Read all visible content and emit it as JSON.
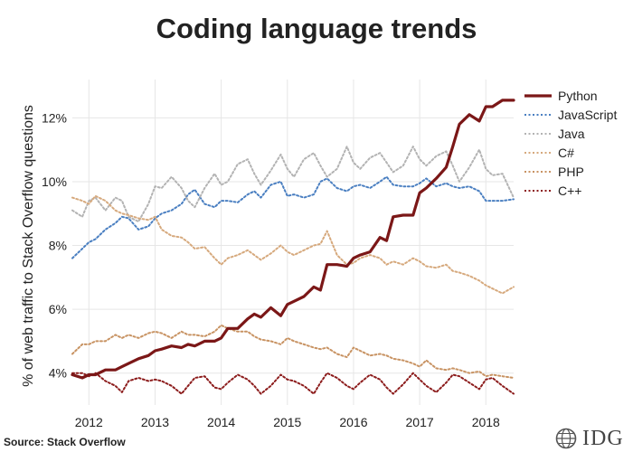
{
  "title": "Coding language trends",
  "source": "Source: Stack Overflow",
  "brand": {
    "text": "IDG",
    "icon": "globe-icon"
  },
  "chart_data": {
    "type": "line",
    "title": "Coding language trends",
    "xlabel": "",
    "ylabel": "% of web traffic to Stack Overflow questions",
    "xlim": [
      2011.75,
      2018.42
    ],
    "ylim": [
      3.0,
      13.2
    ],
    "x_ticks": [
      2012,
      2013,
      2014,
      2015,
      2016,
      2017,
      2018
    ],
    "y_ticks": [
      4,
      6,
      8,
      10,
      12
    ],
    "y_tick_labels": [
      "4%",
      "6%",
      "8%",
      "10%",
      "12%"
    ],
    "grid": true,
    "legend_position": "right",
    "series": [
      {
        "name": "Python",
        "color": "#7b1717",
        "dash": "solid",
        "x": [
          2011.75,
          2011.9,
          2012.0,
          2012.1,
          2012.25,
          2012.4,
          2012.5,
          2012.6,
          2012.75,
          2012.9,
          2013.0,
          2013.1,
          2013.25,
          2013.4,
          2013.5,
          2013.6,
          2013.75,
          2013.9,
          2014.0,
          2014.1,
          2014.25,
          2014.4,
          2014.5,
          2014.6,
          2014.75,
          2014.9,
          2015.0,
          2015.1,
          2015.25,
          2015.4,
          2015.5,
          2015.6,
          2015.75,
          2015.9,
          2016.0,
          2016.1,
          2016.25,
          2016.4,
          2016.5,
          2016.6,
          2016.75,
          2016.9,
          2017.0,
          2017.1,
          2017.25,
          2017.4,
          2017.5,
          2017.6,
          2017.75,
          2017.9,
          2018.0,
          2018.1,
          2018.25,
          2018.42
        ],
        "y": [
          3.95,
          3.85,
          3.95,
          3.95,
          4.1,
          4.1,
          4.2,
          4.3,
          4.45,
          4.55,
          4.7,
          4.75,
          4.85,
          4.8,
          4.9,
          4.85,
          5.0,
          5.0,
          5.1,
          5.4,
          5.4,
          5.7,
          5.85,
          5.75,
          6.05,
          5.8,
          6.15,
          6.25,
          6.4,
          6.7,
          6.6,
          7.4,
          7.4,
          7.35,
          7.6,
          7.7,
          7.8,
          8.25,
          8.15,
          8.9,
          8.95,
          8.95,
          9.65,
          9.8,
          10.1,
          10.45,
          11.1,
          11.8,
          12.1,
          11.9,
          12.35,
          12.35,
          12.55,
          12.55
        ]
      },
      {
        "name": "JavaScript",
        "color": "#4a7fc1",
        "dash": "dotted",
        "x": [
          2011.75,
          2011.9,
          2012.0,
          2012.1,
          2012.25,
          2012.4,
          2012.5,
          2012.6,
          2012.75,
          2012.9,
          2013.0,
          2013.1,
          2013.25,
          2013.4,
          2013.5,
          2013.6,
          2013.75,
          2013.9,
          2014.0,
          2014.1,
          2014.25,
          2014.4,
          2014.5,
          2014.6,
          2014.75,
          2014.9,
          2015.0,
          2015.1,
          2015.25,
          2015.4,
          2015.5,
          2015.6,
          2015.75,
          2015.9,
          2016.0,
          2016.1,
          2016.25,
          2016.4,
          2016.5,
          2016.6,
          2016.75,
          2016.9,
          2017.0,
          2017.1,
          2017.25,
          2017.4,
          2017.5,
          2017.6,
          2017.75,
          2017.9,
          2018.0,
          2018.1,
          2018.25,
          2018.42
        ],
        "y": [
          7.6,
          7.9,
          8.1,
          8.2,
          8.5,
          8.7,
          8.9,
          8.85,
          8.5,
          8.6,
          8.85,
          9.0,
          9.1,
          9.3,
          9.6,
          9.75,
          9.3,
          9.2,
          9.4,
          9.4,
          9.35,
          9.6,
          9.7,
          9.5,
          9.9,
          10.0,
          9.55,
          9.6,
          9.5,
          9.6,
          10.0,
          10.1,
          9.8,
          9.7,
          9.85,
          9.9,
          9.8,
          10.0,
          10.15,
          9.9,
          9.85,
          9.85,
          9.95,
          10.1,
          9.85,
          9.95,
          9.85,
          9.8,
          9.85,
          9.7,
          9.4,
          9.4,
          9.4,
          9.45
        ]
      },
      {
        "name": "Java",
        "color": "#b3b3b3",
        "dash": "dotted",
        "x": [
          2011.75,
          2011.9,
          2012.0,
          2012.1,
          2012.25,
          2012.4,
          2012.5,
          2012.6,
          2012.75,
          2012.9,
          2013.0,
          2013.1,
          2013.25,
          2013.4,
          2013.5,
          2013.6,
          2013.75,
          2013.9,
          2014.0,
          2014.1,
          2014.25,
          2014.4,
          2014.5,
          2014.6,
          2014.75,
          2014.9,
          2015.0,
          2015.1,
          2015.25,
          2015.4,
          2015.5,
          2015.6,
          2015.75,
          2015.9,
          2016.0,
          2016.1,
          2016.25,
          2016.4,
          2016.5,
          2016.6,
          2016.75,
          2016.9,
          2017.0,
          2017.1,
          2017.25,
          2017.4,
          2017.5,
          2017.6,
          2017.75,
          2017.9,
          2018.0,
          2018.1,
          2018.25,
          2018.42
        ],
        "y": [
          9.1,
          8.9,
          9.4,
          9.5,
          9.1,
          9.5,
          9.4,
          8.9,
          8.75,
          9.3,
          9.85,
          9.8,
          10.15,
          9.8,
          9.4,
          9.2,
          9.8,
          10.25,
          9.9,
          10.0,
          10.55,
          10.7,
          10.25,
          9.9,
          10.35,
          10.85,
          10.4,
          10.15,
          10.7,
          10.9,
          10.5,
          10.15,
          10.4,
          11.1,
          10.6,
          10.4,
          10.75,
          10.9,
          10.6,
          10.3,
          10.5,
          11.1,
          10.7,
          10.5,
          10.8,
          10.95,
          10.5,
          10.0,
          10.45,
          11.0,
          10.4,
          10.2,
          10.25,
          9.5
        ]
      },
      {
        "name": "C#",
        "color": "#d6a97d",
        "dash": "dotted",
        "x": [
          2011.75,
          2011.9,
          2012.0,
          2012.1,
          2012.25,
          2012.4,
          2012.5,
          2012.6,
          2012.75,
          2012.9,
          2013.0,
          2013.1,
          2013.25,
          2013.4,
          2013.5,
          2013.6,
          2013.75,
          2013.9,
          2014.0,
          2014.1,
          2014.25,
          2014.4,
          2014.5,
          2014.6,
          2014.75,
          2014.9,
          2015.0,
          2015.1,
          2015.25,
          2015.4,
          2015.5,
          2015.6,
          2015.75,
          2015.9,
          2016.0,
          2016.1,
          2016.25,
          2016.4,
          2016.5,
          2016.6,
          2016.75,
          2016.9,
          2017.0,
          2017.1,
          2017.25,
          2017.4,
          2017.5,
          2017.6,
          2017.75,
          2017.9,
          2018.0,
          2018.1,
          2018.25,
          2018.42
        ],
        "y": [
          9.5,
          9.4,
          9.3,
          9.55,
          9.4,
          9.1,
          9.0,
          8.95,
          8.85,
          8.8,
          8.9,
          8.5,
          8.3,
          8.25,
          8.1,
          7.9,
          7.95,
          7.6,
          7.4,
          7.6,
          7.7,
          7.85,
          7.7,
          7.55,
          7.75,
          8.0,
          7.8,
          7.7,
          7.85,
          8.0,
          8.05,
          8.45,
          7.7,
          7.4,
          7.45,
          7.6,
          7.7,
          7.6,
          7.4,
          7.5,
          7.4,
          7.6,
          7.5,
          7.35,
          7.3,
          7.4,
          7.2,
          7.15,
          7.05,
          6.9,
          6.75,
          6.65,
          6.5,
          6.7
        ]
      },
      {
        "name": "PHP",
        "color": "#c89363",
        "dash": "dotted",
        "x": [
          2011.75,
          2011.9,
          2012.0,
          2012.1,
          2012.25,
          2012.4,
          2012.5,
          2012.6,
          2012.75,
          2012.9,
          2013.0,
          2013.1,
          2013.25,
          2013.4,
          2013.5,
          2013.6,
          2013.75,
          2013.9,
          2014.0,
          2014.1,
          2014.25,
          2014.4,
          2014.5,
          2014.6,
          2014.75,
          2014.9,
          2015.0,
          2015.1,
          2015.25,
          2015.4,
          2015.5,
          2015.6,
          2015.75,
          2015.9,
          2016.0,
          2016.1,
          2016.25,
          2016.4,
          2016.5,
          2016.6,
          2016.75,
          2016.9,
          2017.0,
          2017.1,
          2017.25,
          2017.4,
          2017.5,
          2017.6,
          2017.75,
          2017.9,
          2018.0,
          2018.1,
          2018.25,
          2018.42
        ],
        "y": [
          4.6,
          4.9,
          4.9,
          5.0,
          5.0,
          5.2,
          5.1,
          5.2,
          5.1,
          5.25,
          5.3,
          5.25,
          5.1,
          5.3,
          5.2,
          5.2,
          5.15,
          5.3,
          5.5,
          5.4,
          5.3,
          5.3,
          5.15,
          5.05,
          5.0,
          4.9,
          5.1,
          5.0,
          4.9,
          4.8,
          4.75,
          4.8,
          4.6,
          4.5,
          4.8,
          4.7,
          4.55,
          4.6,
          4.55,
          4.45,
          4.4,
          4.3,
          4.2,
          4.4,
          4.15,
          4.1,
          4.15,
          4.1,
          4.0,
          4.05,
          3.9,
          3.95,
          3.9,
          3.85
        ]
      },
      {
        "name": "C++",
        "color": "#8c1c1c",
        "dash": "dotted",
        "x": [
          2011.75,
          2011.9,
          2012.0,
          2012.1,
          2012.25,
          2012.4,
          2012.5,
          2012.6,
          2012.75,
          2012.9,
          2013.0,
          2013.1,
          2013.25,
          2013.4,
          2013.5,
          2013.6,
          2013.75,
          2013.9,
          2014.0,
          2014.1,
          2014.25,
          2014.4,
          2014.5,
          2014.6,
          2014.75,
          2014.9,
          2015.0,
          2015.1,
          2015.25,
          2015.4,
          2015.5,
          2015.6,
          2015.75,
          2015.9,
          2016.0,
          2016.1,
          2016.25,
          2016.4,
          2016.5,
          2016.6,
          2016.75,
          2016.9,
          2017.0,
          2017.1,
          2017.25,
          2017.4,
          2017.5,
          2017.6,
          2017.75,
          2017.9,
          2018.0,
          2018.1,
          2018.25,
          2018.42
        ],
        "y": [
          4.0,
          4.0,
          3.9,
          4.0,
          3.75,
          3.6,
          3.4,
          3.75,
          3.85,
          3.75,
          3.8,
          3.75,
          3.6,
          3.35,
          3.6,
          3.85,
          3.9,
          3.55,
          3.5,
          3.7,
          3.95,
          3.8,
          3.6,
          3.35,
          3.6,
          3.95,
          3.8,
          3.75,
          3.6,
          3.35,
          3.7,
          4.0,
          3.85,
          3.6,
          3.5,
          3.7,
          3.95,
          3.8,
          3.55,
          3.35,
          3.65,
          4.0,
          3.8,
          3.6,
          3.4,
          3.7,
          3.95,
          3.9,
          3.7,
          3.5,
          3.8,
          3.85,
          3.6,
          3.35
        ]
      }
    ]
  }
}
